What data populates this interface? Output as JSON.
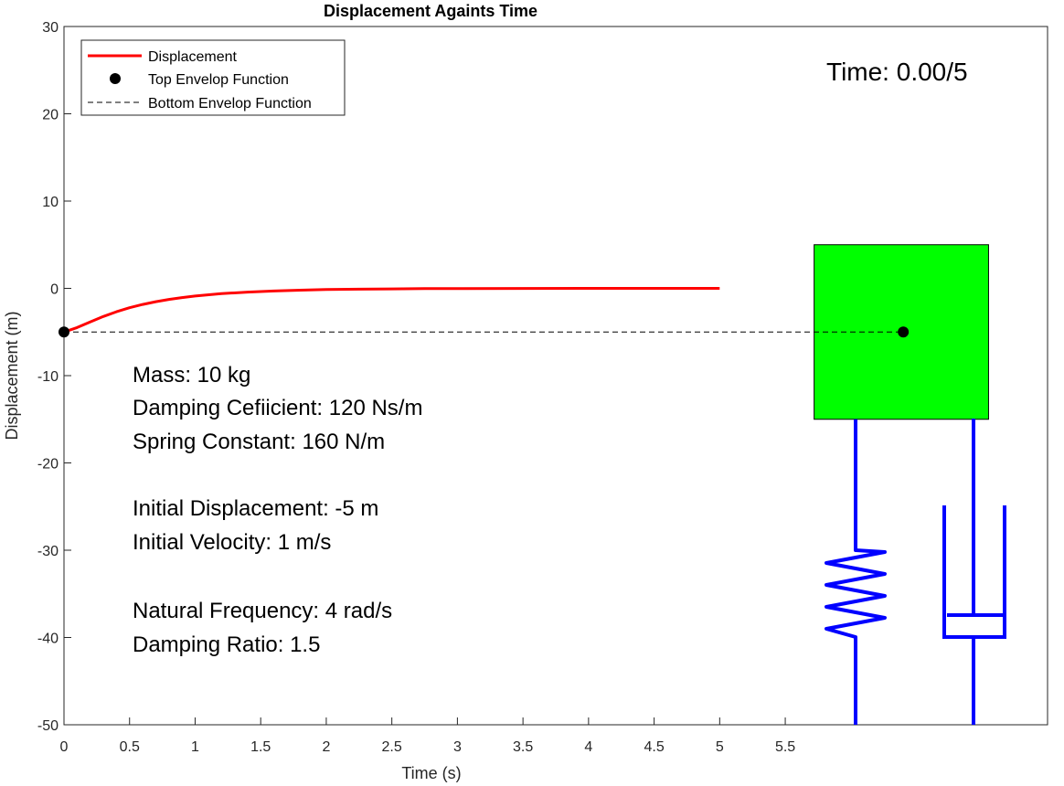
{
  "chart_data": {
    "type": "line",
    "title": "Displacement Againts Time",
    "xlabel": "Time (s)",
    "ylabel": "Displacement (m)",
    "xlim": [
      0,
      7.5
    ],
    "ylim": [
      -50,
      30
    ],
    "xticks": [
      0,
      0.5,
      1,
      1.5,
      2,
      2.5,
      3,
      3.5,
      4,
      4.5,
      5,
      5.5
    ],
    "xtick_labels": [
      "0",
      "0.5",
      "1",
      "1.5",
      "2",
      "2.5",
      "3",
      "3.5",
      "4",
      "4.5",
      "5",
      "5.5"
    ],
    "yticks": [
      30,
      20,
      10,
      0,
      -10,
      -20,
      -30,
      -40,
      -50
    ],
    "ytick_labels": [
      "30",
      "20",
      "10",
      "0",
      "-10",
      "-20",
      "-30",
      "-40",
      "-50"
    ],
    "grid": false,
    "legend_position": "top-left",
    "series": [
      {
        "name": "Displacement",
        "style": "solid-line",
        "color": "#ff0000",
        "x": [
          0,
          0.1,
          0.2,
          0.3,
          0.4,
          0.5,
          0.6,
          0.7,
          0.8,
          0.9,
          1.0,
          1.2,
          1.4,
          1.6,
          1.8,
          2.0,
          2.25,
          2.5,
          2.75,
          3.0,
          3.5,
          4.0,
          4.5,
          5.0
        ],
        "y": [
          -5,
          -4.49,
          -3.84,
          -3.22,
          -2.68,
          -2.22,
          -1.84,
          -1.53,
          -1.27,
          -1.06,
          -0.88,
          -0.61,
          -0.43,
          -0.3,
          -0.21,
          -0.14,
          -0.09,
          -0.06,
          -0.03,
          -0.02,
          -0.01,
          0,
          0,
          0
        ]
      },
      {
        "name": "Top Envelop Function",
        "style": "marker",
        "color": "#000000",
        "x": [
          0,
          6.4
        ],
        "y": [
          -5,
          -5
        ]
      },
      {
        "name": "Bottom Envelop Function",
        "style": "dashed-line",
        "color": "#000000",
        "x": [
          0,
          6.4
        ],
        "y": [
          -5,
          -5
        ]
      }
    ],
    "system_parameters": [
      "Mass: 10 kg",
      "Damping Cefiicient: 120 Ns/m",
      "Spring Constant: 160 N/m",
      "Initial Displacement: -5 m",
      "Initial Velocity: 1 m/s",
      "Natural Frequency: 4 rad/s",
      "Damping Ratio: 1.5"
    ],
    "time_display": "Time: 0.00/5",
    "mass_block": {
      "color": "#00ff00",
      "x_range": [
        5.72,
        7.05
      ],
      "y_range": [
        -15,
        5
      ],
      "center_marker": [
        6.4,
        -5
      ]
    },
    "spring_color": "#0000ff",
    "damper_color": "#0000ff"
  }
}
